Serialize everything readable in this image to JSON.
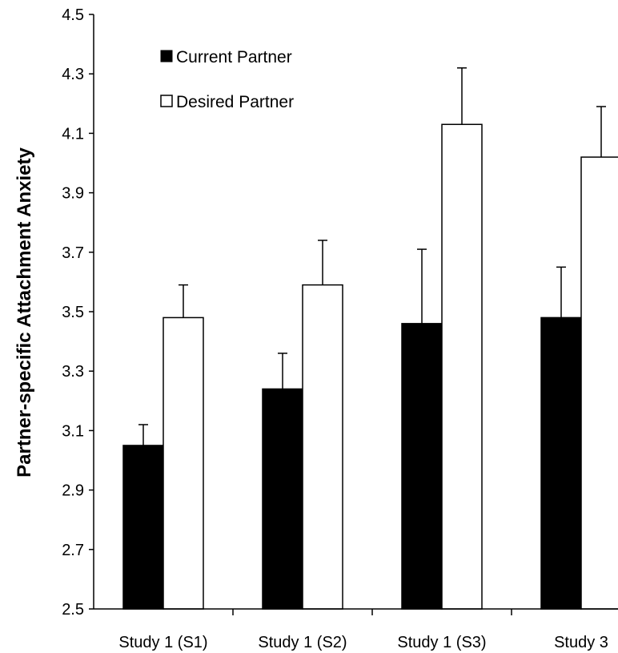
{
  "chart_data": {
    "type": "bar",
    "title": "",
    "xlabel": "",
    "ylabel": "Partner-specific Attachment Anxiety",
    "ylim": [
      2.5,
      4.5
    ],
    "yticks": [
      "2.5",
      "2.7",
      "2.9",
      "3.1",
      "3.3",
      "3.5",
      "3.7",
      "3.9",
      "4.1",
      "4.3",
      "4.5"
    ],
    "categories": [
      "Study 1 (S1)",
      "Study 1 (S2)",
      "Study 1 (S3)",
      "Study 3"
    ],
    "series": [
      {
        "name": "Current Partner",
        "color": "#000000",
        "values": [
          3.05,
          3.24,
          3.46,
          3.48
        ],
        "errors": [
          0.07,
          0.12,
          0.25,
          0.17
        ]
      },
      {
        "name": "Desired Partner",
        "color": "#ffffff",
        "values": [
          3.48,
          3.59,
          4.13,
          4.02
        ],
        "errors": [
          0.11,
          0.15,
          0.19,
          0.17
        ]
      }
    ],
    "grid": false,
    "legend_position": "top-left"
  }
}
